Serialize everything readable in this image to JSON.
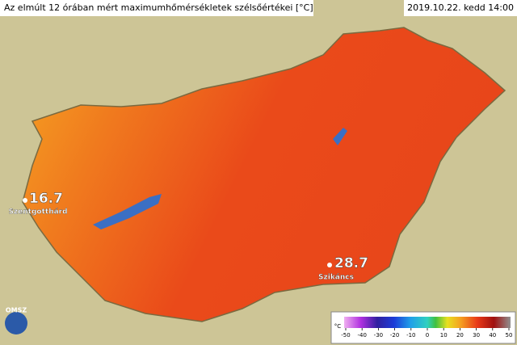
{
  "header": {
    "title": "Az elmúlt 12 órában mért maximumhőmérsékletek szélsőértékei [°C]",
    "date": "2019.10.22. kedd 14:00"
  },
  "stations": [
    {
      "value": 16.7,
      "name": "Szentgotthárd"
    },
    {
      "value": 28.7,
      "name": "Szikáncs"
    }
  ],
  "logo": "OMSZ",
  "legend": {
    "unit": "°C",
    "ticks": [
      -50,
      -40,
      -30,
      -20,
      -10,
      0,
      10,
      20,
      30,
      40,
      50
    ]
  }
}
